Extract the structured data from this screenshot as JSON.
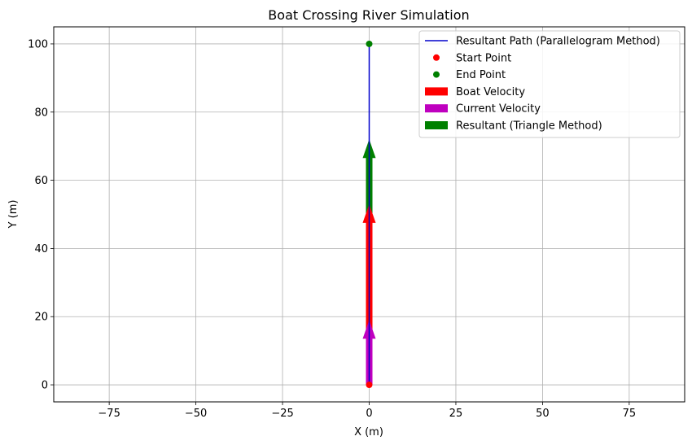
{
  "chart_data": {
    "type": "line",
    "title": "Boat Crossing River Simulation",
    "xlabel": "X (m)",
    "ylabel": "Y (m)",
    "xlim": [
      -91,
      91
    ],
    "ylim": [
      -5,
      105
    ],
    "xticks": [
      -75,
      -50,
      -25,
      0,
      25,
      50,
      75
    ],
    "xtick_labels": [
      "−75",
      "−50",
      "−25",
      "0",
      "25",
      "50",
      "75"
    ],
    "yticks": [
      0,
      20,
      40,
      60,
      80,
      100
    ],
    "ytick_labels": [
      "0",
      "20",
      "40",
      "60",
      "80",
      "100"
    ],
    "grid": true,
    "legend_position": "top-right",
    "path": {
      "name": "Resultant Path (Parallelogram Method)",
      "color": "#0000cc",
      "x": [
        0,
        0
      ],
      "y": [
        0,
        100
      ]
    },
    "points": [
      {
        "name": "Start Point",
        "color": "#ff0000",
        "x": 0,
        "y": 0
      },
      {
        "name": "End Point",
        "color": "#008000",
        "x": 0,
        "y": 100
      }
    ],
    "vectors": [
      {
        "name": "Resultant (Triangle Method)",
        "color": "#008000",
        "x0": 0,
        "y0": 0,
        "dx": 0,
        "dy": 72
      },
      {
        "name": "Boat Velocity",
        "color": "#ff0000",
        "x0": 0,
        "y0": 0,
        "dx": 0,
        "dy": 53
      },
      {
        "name": "Current Velocity",
        "color": "#bf00bf",
        "x0": 0,
        "y0": 0,
        "dx": 0,
        "dy": 19
      }
    ],
    "legend": [
      {
        "label": "Resultant Path (Parallelogram Method)",
        "kind": "line",
        "color": "#0000cc"
      },
      {
        "label": "Start Point",
        "kind": "marker",
        "color": "#ff0000"
      },
      {
        "label": "End Point",
        "kind": "marker",
        "color": "#008000"
      },
      {
        "label": "Boat Velocity",
        "kind": "patch",
        "color": "#ff0000"
      },
      {
        "label": "Current Velocity",
        "kind": "patch",
        "color": "#bf00bf"
      },
      {
        "label": "Resultant (Triangle Method)",
        "kind": "patch",
        "color": "#008000"
      }
    ]
  }
}
